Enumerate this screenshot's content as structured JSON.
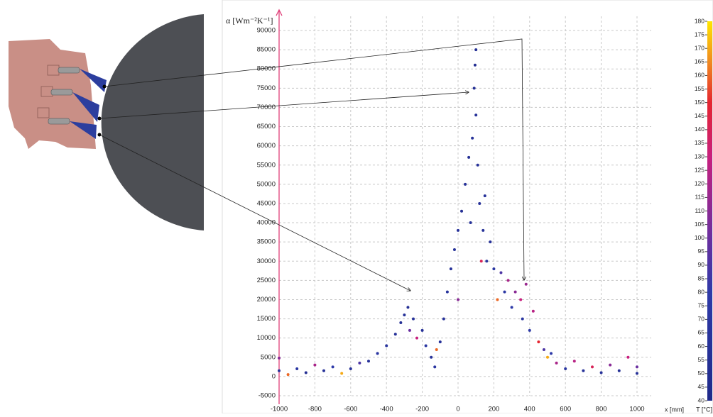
{
  "chart_data": {
    "type": "scatter",
    "y_label": "α [Wm⁻²K⁻¹]",
    "x_label": "x [mm]",
    "xlim": [
      -1000,
      1000
    ],
    "xticks": [
      -1000,
      -800,
      -600,
      -400,
      -200,
      0,
      200,
      400,
      600,
      800,
      1000
    ],
    "ylim": [
      -5000,
      90000
    ],
    "yticks": [
      -5000,
      0,
      5000,
      10000,
      15000,
      20000,
      25000,
      30000,
      35000,
      40000,
      45000,
      50000,
      55000,
      60000,
      65000,
      70000,
      75000,
      80000,
      85000,
      90000
    ],
    "grid": true,
    "x": [
      -1000,
      -1000,
      -950,
      -900,
      -850,
      -800,
      -750,
      -700,
      -650,
      -600,
      -550,
      -500,
      -450,
      -400,
      -350,
      -320,
      -300,
      -280,
      -270,
      -250,
      -230,
      -200,
      -180,
      -150,
      -130,
      -120,
      -100,
      -80,
      -60,
      -40,
      -20,
      0,
      0,
      20,
      40,
      60,
      70,
      80,
      90,
      95,
      100,
      100,
      110,
      120,
      130,
      140,
      150,
      160,
      180,
      200,
      220,
      240,
      260,
      280,
      300,
      320,
      350,
      360,
      380,
      400,
      420,
      450,
      480,
      500,
      520,
      550,
      600,
      650,
      700,
      750,
      800,
      850,
      900,
      950,
      1000,
      1000
    ],
    "values": [
      1500,
      4800,
      500,
      2000,
      1000,
      3000,
      1500,
      2500,
      800,
      2000,
      3500,
      4000,
      6000,
      8000,
      11000,
      14000,
      16000,
      18000,
      12000,
      15000,
      10000,
      12000,
      8000,
      5000,
      2500,
      7000,
      9000,
      15000,
      22000,
      28000,
      33000,
      38000,
      20000,
      43000,
      50000,
      57000,
      40000,
      62000,
      75000,
      81000,
      85000,
      68000,
      55000,
      45000,
      30000,
      38000,
      47000,
      30000,
      35000,
      28000,
      20000,
      27000,
      22000,
      25000,
      18000,
      22000,
      20000,
      15000,
      24000,
      12000,
      17000,
      9000,
      7000,
      5000,
      6000,
      3500,
      2000,
      4000,
      1500,
      2500,
      1000,
      3000,
      1500,
      5000,
      800,
      2500
    ],
    "t": [
      60,
      110,
      160,
      70,
      50,
      120,
      60,
      80,
      170,
      60,
      90,
      60,
      70,
      65,
      60,
      55,
      60,
      55,
      100,
      60,
      130,
      60,
      70,
      60,
      70,
      160,
      60,
      60,
      65,
      60,
      60,
      60,
      110,
      55,
      60,
      55,
      60,
      60,
      55,
      50,
      55,
      60,
      60,
      60,
      140,
      60,
      60,
      65,
      60,
      70,
      160,
      90,
      75,
      120,
      80,
      110,
      130,
      70,
      115,
      80,
      125,
      150,
      90,
      170,
      80,
      120,
      70,
      125,
      60,
      140,
      60,
      110,
      55,
      130,
      60,
      100
    ],
    "colorbar": {
      "label": "T [°C]",
      "lim": [
        40,
        180
      ],
      "ticks": [
        40,
        45,
        50,
        55,
        60,
        65,
        70,
        75,
        80,
        85,
        90,
        95,
        100,
        105,
        110,
        115,
        120,
        125,
        130,
        135,
        140,
        145,
        150,
        155,
        160,
        165,
        170,
        175,
        180
      ],
      "colormap": [
        {
          "value": 40,
          "color": "#1f2a8a"
        },
        {
          "value": 80,
          "color": "#2e3aa8"
        },
        {
          "value": 100,
          "color": "#6a2fa0"
        },
        {
          "value": 130,
          "color": "#c8207e"
        },
        {
          "value": 150,
          "color": "#e52530"
        },
        {
          "value": 165,
          "color": "#f08a20"
        },
        {
          "value": 180,
          "color": "#ffe600"
        }
      ]
    }
  }
}
